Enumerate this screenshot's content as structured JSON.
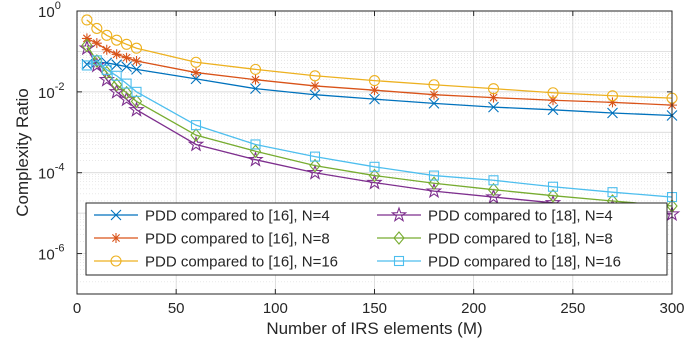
{
  "chart_data": {
    "type": "line",
    "xlabel": "Number of IRS elements (M)",
    "ylabel": "Complexity Ratio",
    "xlim": [
      0,
      300
    ],
    "ylim_log10": [
      -7,
      0
    ],
    "yscale": "log",
    "grid": true,
    "legend_placement": "bottom-left",
    "xticks": [
      0,
      50,
      100,
      150,
      200,
      250,
      300
    ],
    "xtick_labels": [
      "0",
      "50",
      "100",
      "150",
      "200",
      "250",
      "300"
    ],
    "yticks_exp": [
      0,
      -2,
      -4,
      -6
    ],
    "ytick_base": "10",
    "ytick_exponents": [
      "0",
      "-2",
      "-4",
      "-6"
    ],
    "x": [
      5,
      10,
      15,
      20,
      25,
      30,
      60,
      90,
      120,
      150,
      180,
      210,
      240,
      270,
      300
    ],
    "series": [
      {
        "name": "PDD compared to [16], N=4",
        "color": "#0072BD",
        "marker": "x",
        "values": [
          0.048,
          0.054,
          0.052,
          0.047,
          0.042,
          0.036,
          0.021,
          0.012,
          0.0085,
          0.0066,
          0.0052,
          0.0042,
          0.0036,
          0.003,
          0.0026
        ]
      },
      {
        "name": "PDD compared to [16], N=8",
        "color": "#D95319",
        "marker": "asterisk",
        "values": [
          0.21,
          0.16,
          0.11,
          0.085,
          0.07,
          0.058,
          0.03,
          0.02,
          0.014,
          0.011,
          0.0085,
          0.0072,
          0.0062,
          0.0055,
          0.0047
        ]
      },
      {
        "name": "PDD compared to [16], N=16",
        "color": "#EDB120",
        "marker": "circle",
        "values": [
          0.6,
          0.37,
          0.25,
          0.19,
          0.15,
          0.12,
          0.054,
          0.036,
          0.025,
          0.019,
          0.015,
          0.012,
          0.0095,
          0.008,
          0.007
        ]
      },
      {
        "name": "PDD compared to [18], N=4",
        "color": "#7E2F8E",
        "marker": "pentagram",
        "values": [
          0.12,
          0.045,
          0.02,
          0.01,
          0.0065,
          0.0036,
          0.0005,
          0.00021,
          0.0001,
          5.7e-05,
          3.5e-05,
          2.5e-05,
          1.8e-05,
          1.4e-05,
          9.5e-06
        ]
      },
      {
        "name": "PDD compared to [18], N=8",
        "color": "#77AC30",
        "marker": "diamond",
        "values": [
          0.14,
          0.058,
          0.03,
          0.015,
          0.0095,
          0.0058,
          0.00085,
          0.00034,
          0.00015,
          8.5e-05,
          5.5e-05,
          3.8e-05,
          2.7e-05,
          2e-05,
          1.5e-05
        ]
      },
      {
        "name": "PDD compared to [18], N=16",
        "color": "#4DBEEE",
        "marker": "square",
        "values": [
          0.045,
          0.06,
          0.035,
          0.025,
          0.016,
          0.01,
          0.0015,
          0.0005,
          0.00025,
          0.00014,
          8.5e-05,
          6.5e-05,
          4.5e-05,
          3.3e-05,
          2.5e-05
        ]
      }
    ]
  }
}
